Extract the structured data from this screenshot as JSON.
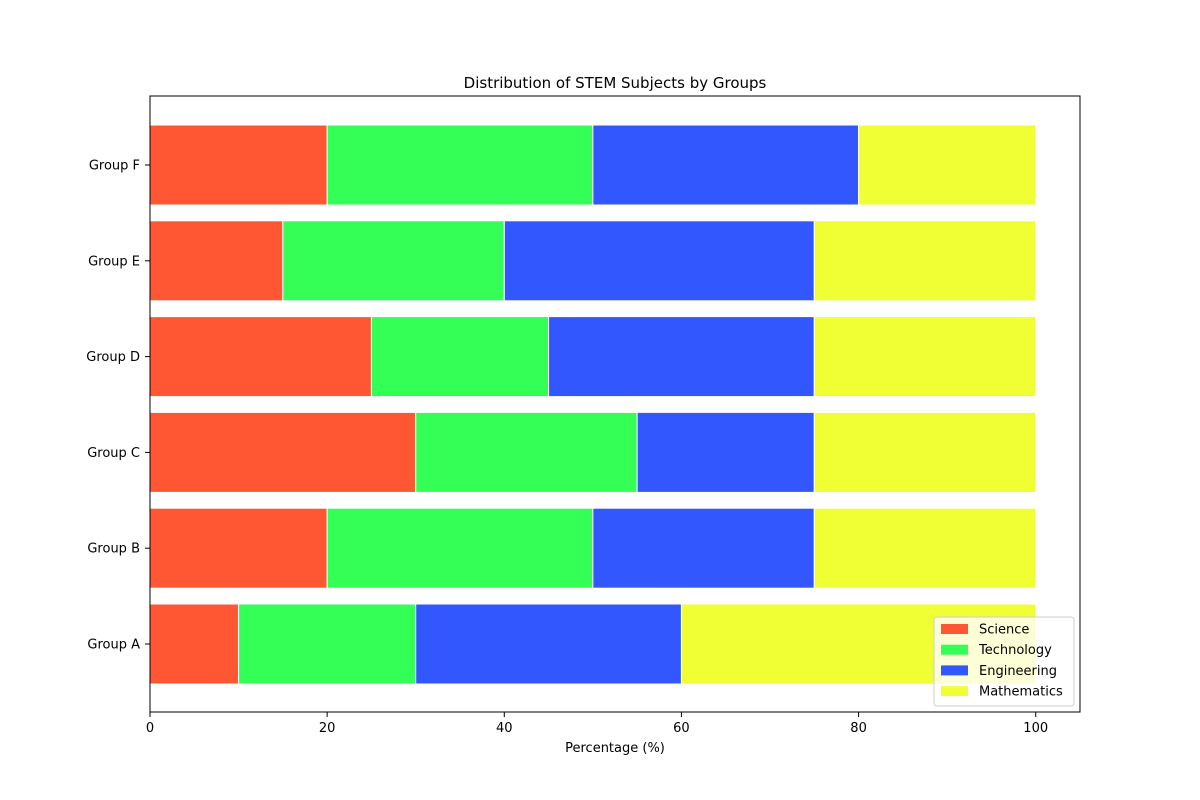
{
  "chart_data": {
    "type": "bar",
    "orientation": "horizontal",
    "stacked": true,
    "title": "Distribution of STEM Subjects by Groups",
    "xlabel": "Percentage (%)",
    "ylabel": "",
    "xlim": [
      0,
      105
    ],
    "xticks": [
      0,
      20,
      40,
      60,
      80,
      100
    ],
    "categories": [
      "Group A",
      "Group B",
      "Group C",
      "Group D",
      "Group E",
      "Group F"
    ],
    "series": [
      {
        "name": "Science",
        "color": "#ff5733",
        "values": [
          10,
          20,
          30,
          25,
          15,
          20
        ]
      },
      {
        "name": "Technology",
        "color": "#33ff57",
        "values": [
          20,
          30,
          25,
          20,
          25,
          30
        ]
      },
      {
        "name": "Engineering",
        "color": "#3357ff",
        "values": [
          30,
          25,
          20,
          30,
          35,
          30
        ]
      },
      {
        "name": "Mathematics",
        "color": "#f0ff33",
        "values": [
          40,
          25,
          25,
          25,
          25,
          20
        ]
      }
    ],
    "grid": false,
    "legend_position": "lower-right"
  }
}
